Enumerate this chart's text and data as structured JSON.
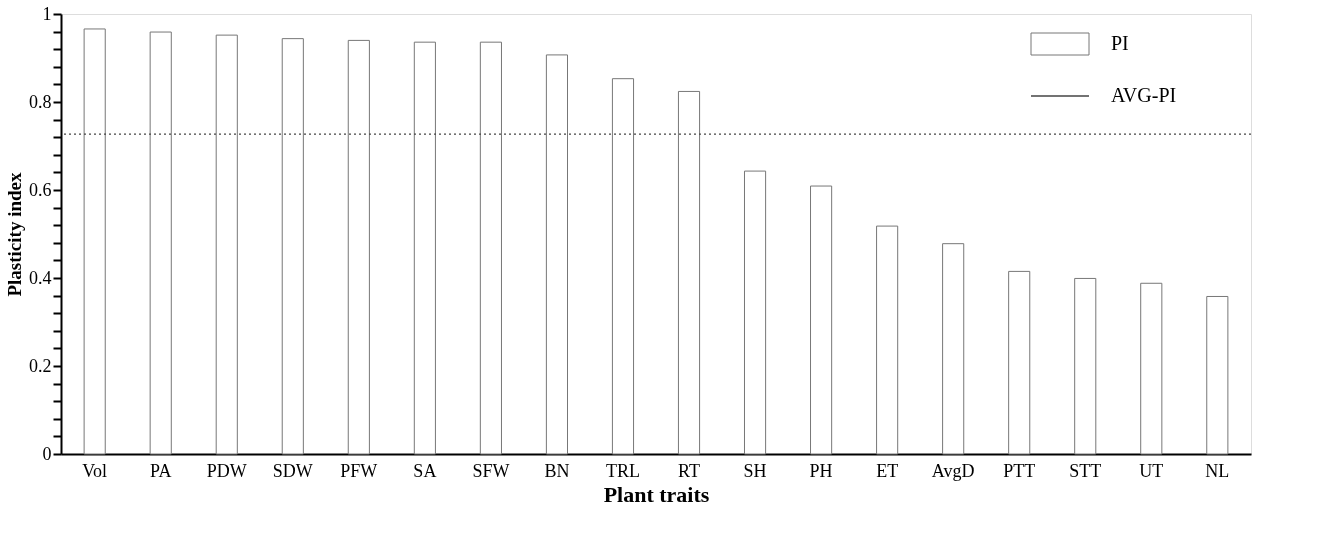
{
  "chart_data": {
    "type": "bar",
    "xlabel": "Plant traits",
    "ylabel": "Plasticity index",
    "categories": [
      "Vol",
      "PA",
      "PDW",
      "SDW",
      "PFW",
      "SA",
      "SFW",
      "BN",
      "TRL",
      "RT",
      "SH",
      "PH",
      "ET",
      "AvgD",
      "PTT",
      "STT",
      "UT",
      "NL"
    ],
    "series": [
      {
        "name": "PI",
        "color": "#ffffff",
        "values": [
          0.966,
          0.959,
          0.952,
          0.944,
          0.94,
          0.936,
          0.936,
          0.907,
          0.853,
          0.824,
          0.643,
          0.609,
          0.518,
          0.478,
          0.415,
          0.399,
          0.388,
          0.358
        ]
      }
    ],
    "ylim": [
      0,
      1
    ],
    "yticks": [
      0,
      {
        "value": 0.04,
        "label": null
      },
      {
        "value": 0.08,
        "label": null
      },
      {
        "value": 0.12,
        "label": null
      },
      {
        "value": 0.16,
        "label": null
      },
      0.2,
      {
        "value": 0.24,
        "label": null
      },
      {
        "value": 0.28,
        "label": null
      },
      {
        "value": 0.32,
        "label": null
      },
      {
        "value": 0.36,
        "label": null
      },
      0.4,
      {
        "value": 0.44,
        "label": null
      },
      {
        "value": 0.48,
        "label": null
      },
      {
        "value": 0.52,
        "label": null
      },
      {
        "value": 0.56,
        "label": null
      },
      0.6,
      {
        "value": 0.64,
        "label": null
      },
      {
        "value": 0.68,
        "label": null
      },
      {
        "value": 0.72,
        "label": null
      },
      {
        "value": 0.76,
        "label": null
      },
      0.8,
      {
        "value": 0.84,
        "label": null
      },
      {
        "value": 0.88,
        "label": null
      },
      {
        "value": 0.92,
        "label": null
      },
      {
        "value": 0.96,
        "label": null
      },
      1
    ],
    "ref_lines": [
      {
        "axis": "y",
        "value": 0.727,
        "label": "AVG-PI",
        "line_style": "dotted",
        "color": "#444444"
      }
    ],
    "grid": false,
    "legend": "top right"
  }
}
